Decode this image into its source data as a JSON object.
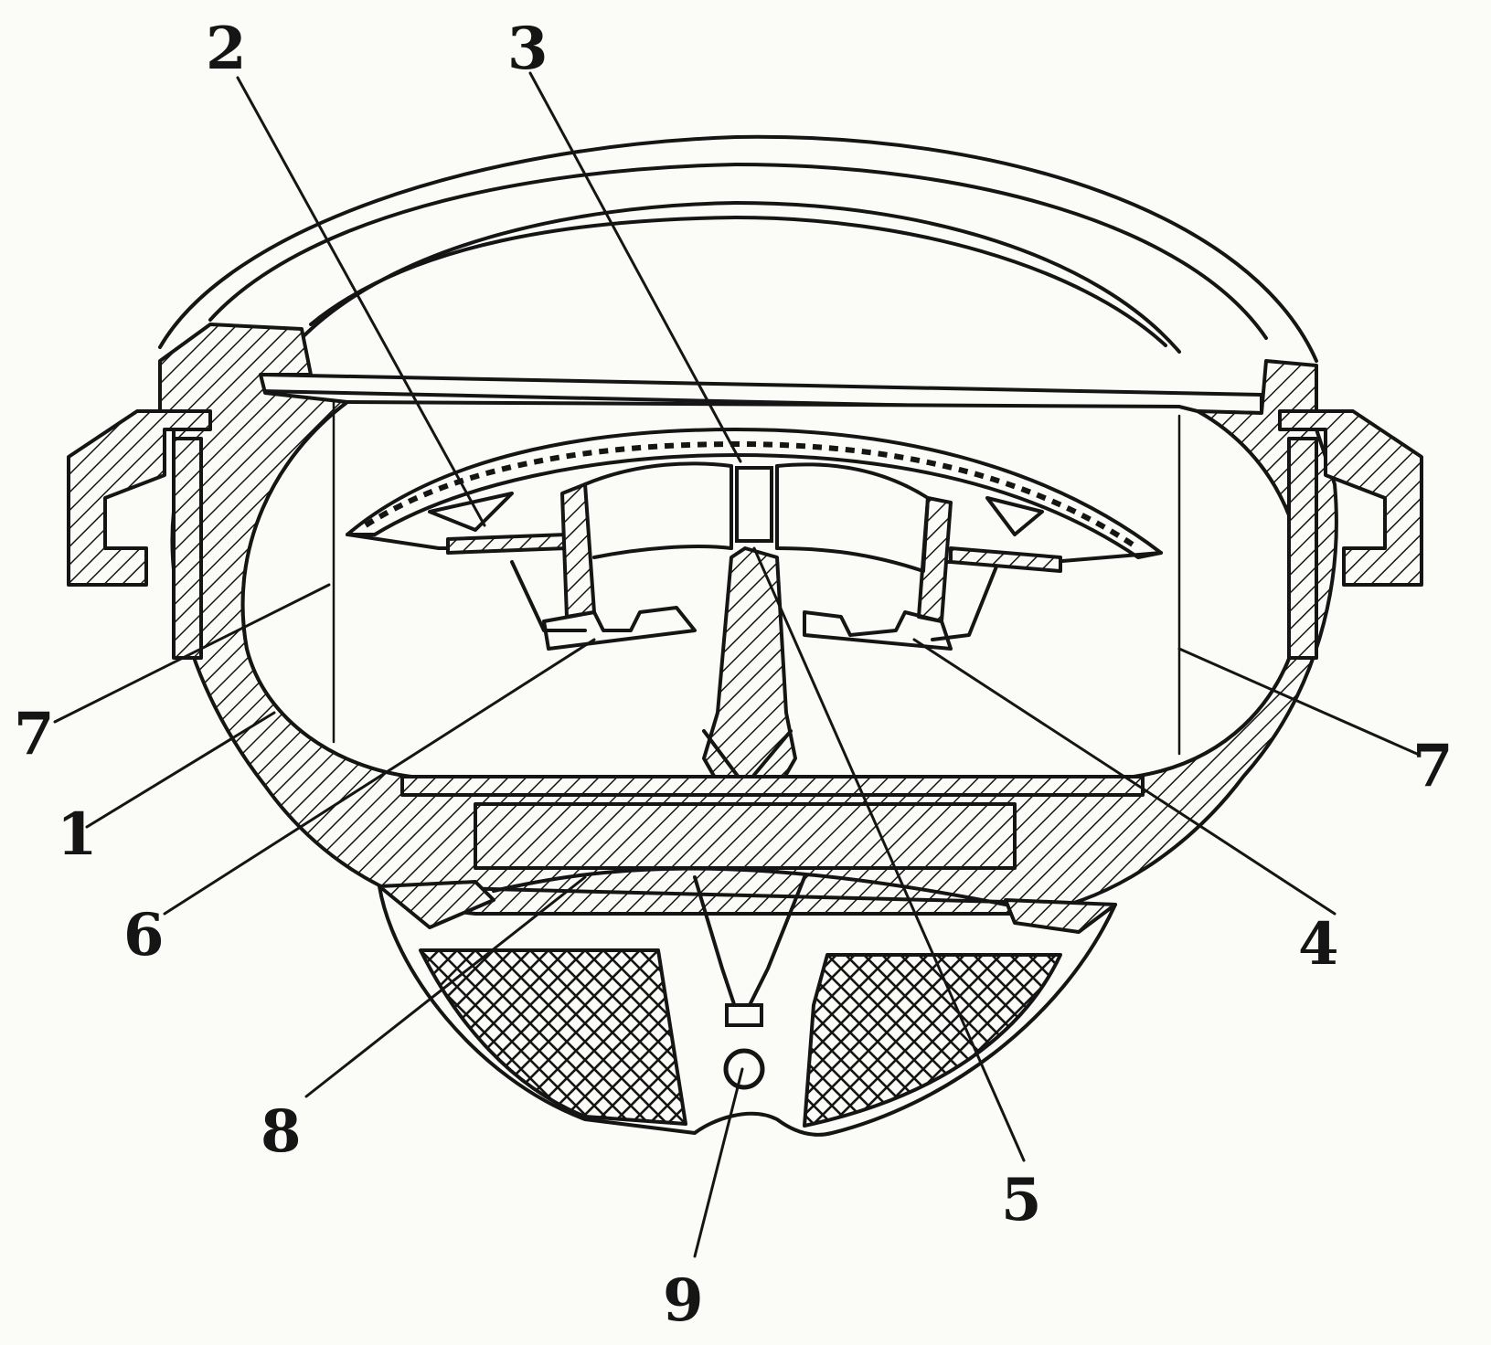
{
  "labels": {
    "l1": "1",
    "l2": "2",
    "l3": "3",
    "l4": "4",
    "l5": "5",
    "l6": "6",
    "l7_left": "7",
    "l7_right": "7",
    "l8": "8",
    "l9": "9"
  }
}
